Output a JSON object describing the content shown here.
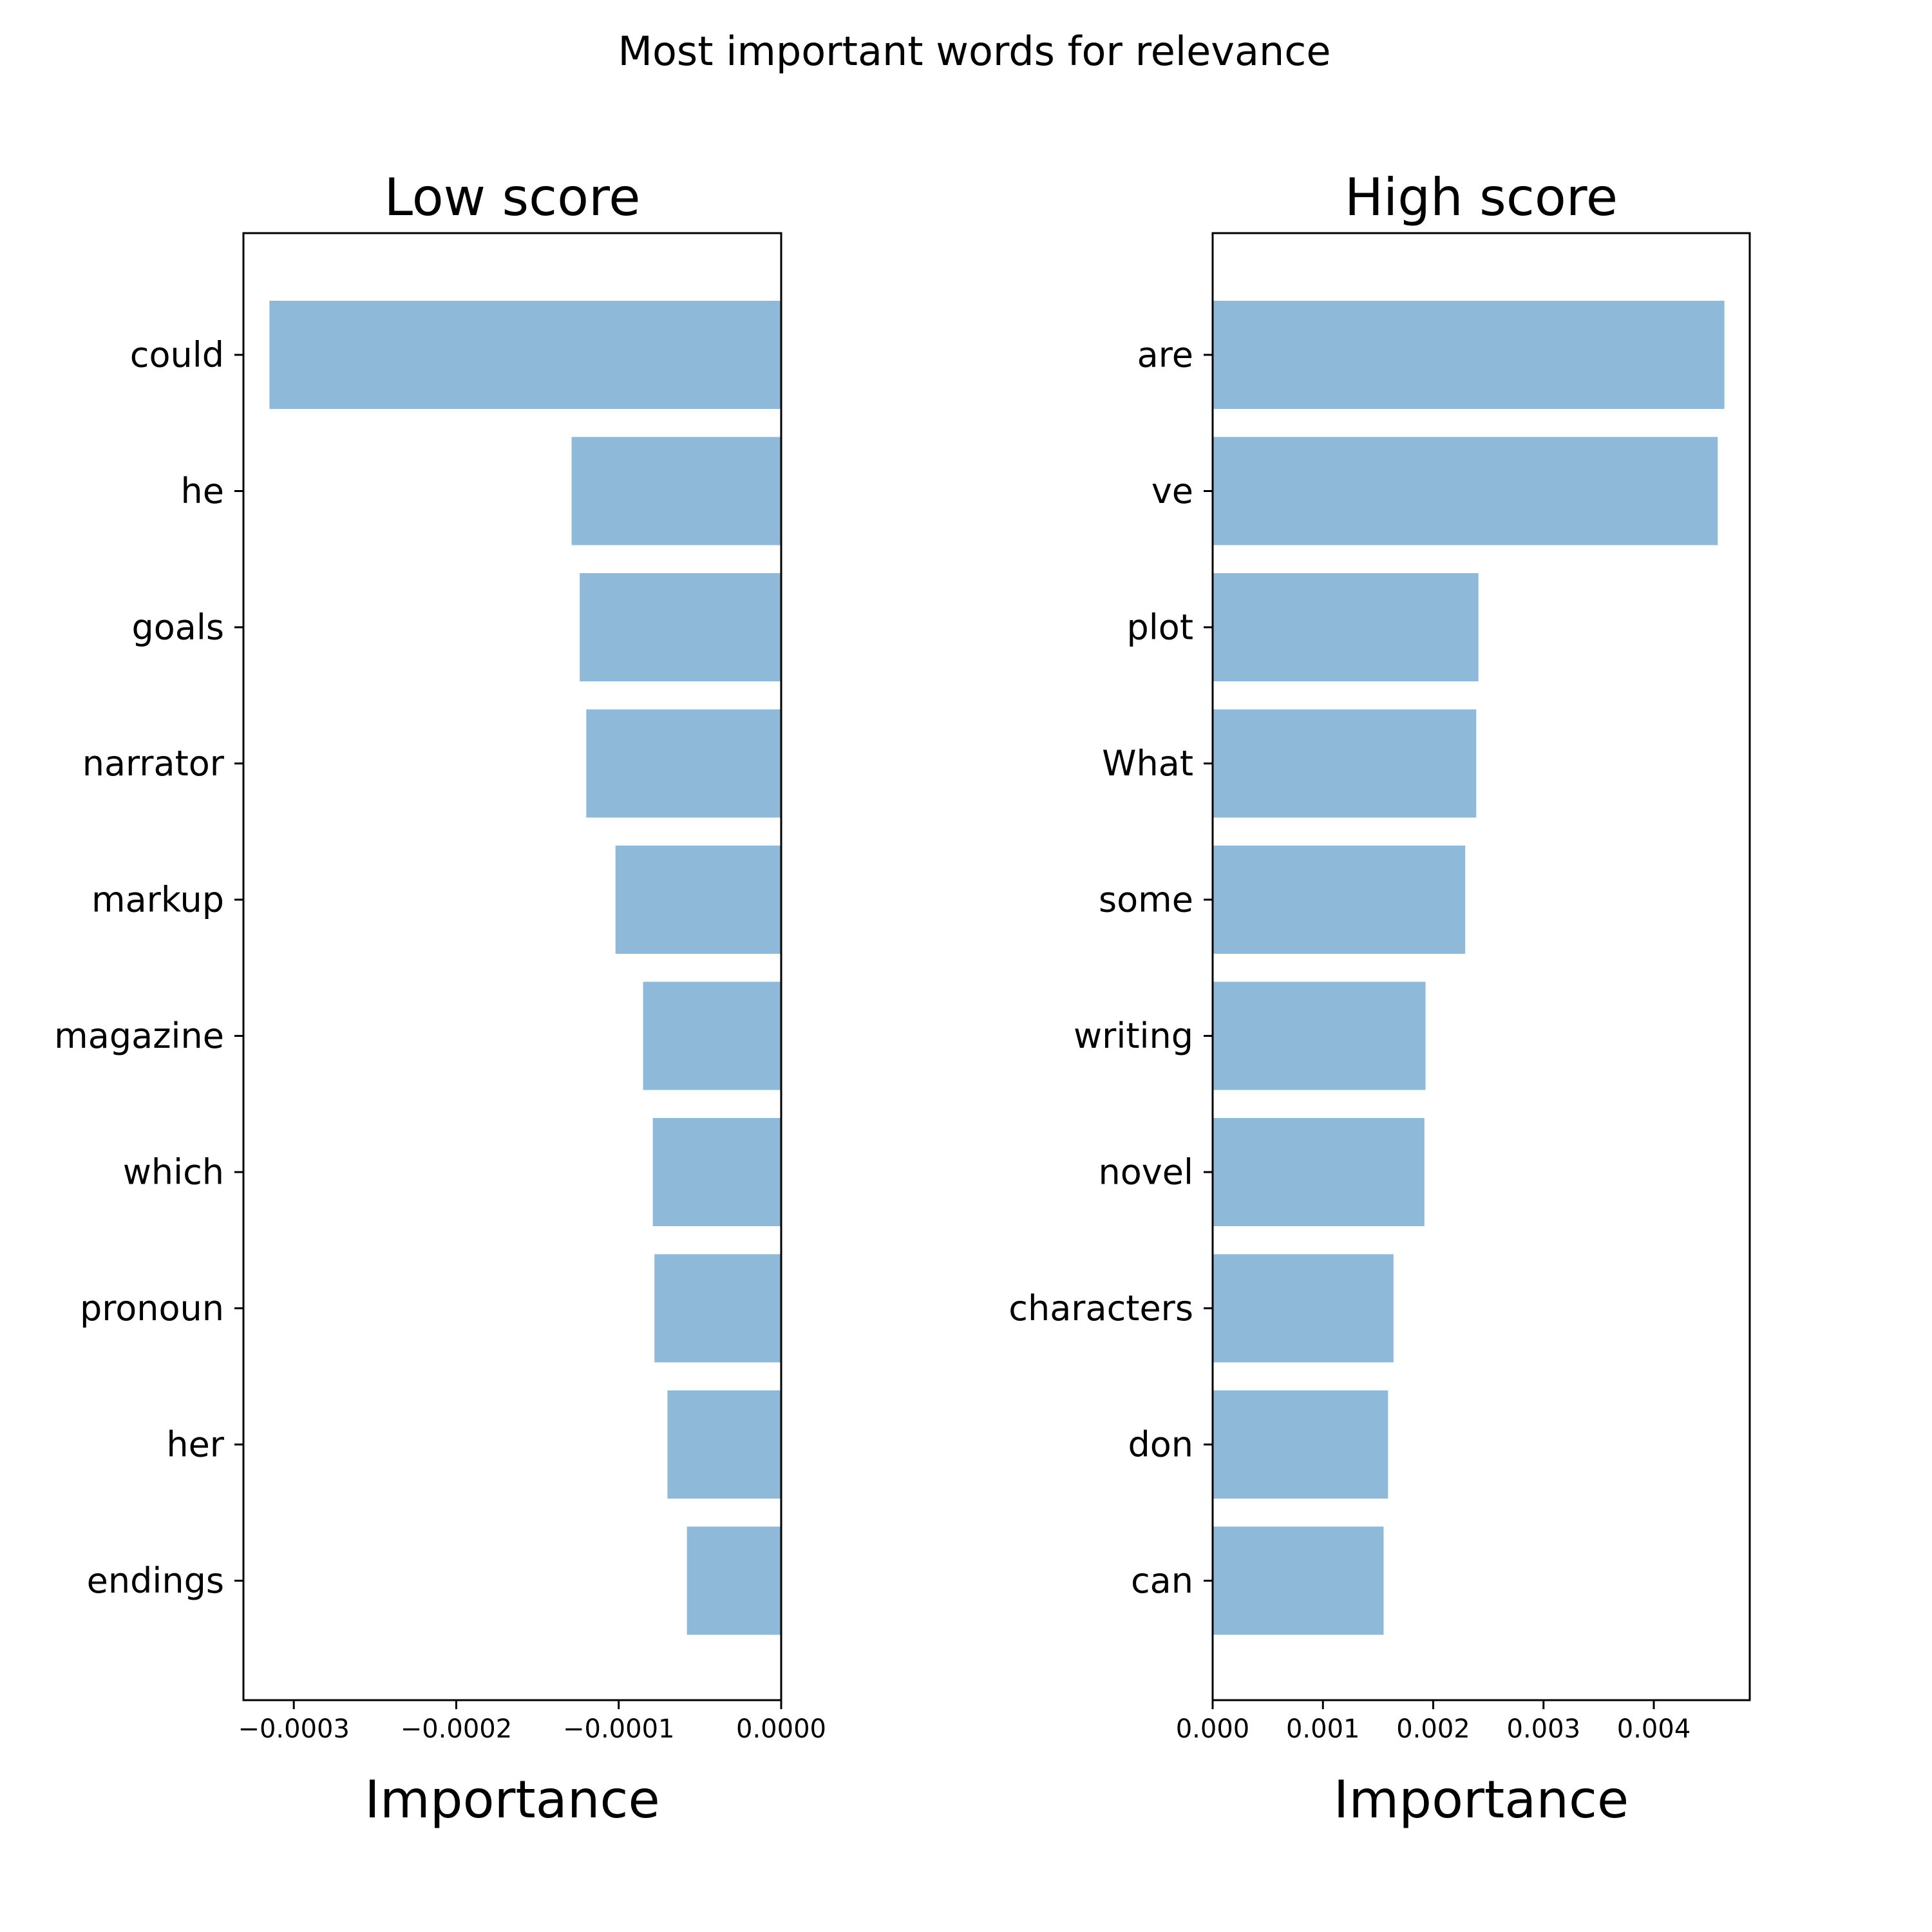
{
  "figure_title": "Most important words for relevance",
  "colors": {
    "bar": "#8fb9d9",
    "axis": "#000000",
    "background": "#ffffff"
  },
  "chart_data": [
    {
      "type": "bar",
      "orientation": "horizontal",
      "title": "Low score",
      "xlabel": "Importance",
      "ylabel": "",
      "xlim": [
        -0.000331,
        0
      ],
      "xticks": [
        -0.0003,
        -0.0002,
        -0.0001,
        0.0
      ],
      "xtick_labels": [
        "−0.0003",
        "−0.0002",
        "−0.0001",
        "0.0000"
      ],
      "categories": [
        "could",
        "he",
        "goals",
        "narrator",
        "markup",
        "magazine",
        "which",
        "pronoun",
        "her",
        "endings"
      ],
      "values": [
        -0.000315,
        -0.000129,
        -0.000124,
        -0.00012,
        -0.000102,
        -8.5e-05,
        -7.9e-05,
        -7.8e-05,
        -7e-05,
        -5.8e-05
      ],
      "grid": false
    },
    {
      "type": "bar",
      "orientation": "horizontal",
      "title": "High score",
      "xlabel": "Importance",
      "ylabel": "",
      "xlim": [
        0,
        0.00487
      ],
      "xticks": [
        0.0,
        0.001,
        0.002,
        0.003,
        0.004
      ],
      "xtick_labels": [
        "0.000",
        "0.001",
        "0.002",
        "0.003",
        "0.004"
      ],
      "categories": [
        "are",
        "ve",
        "plot",
        "What",
        "some",
        "writing",
        "novel",
        "characters",
        "don",
        "can"
      ],
      "values": [
        0.00464,
        0.00458,
        0.00241,
        0.00239,
        0.00229,
        0.00193,
        0.00192,
        0.00164,
        0.00159,
        0.00155
      ],
      "grid": false
    }
  ]
}
